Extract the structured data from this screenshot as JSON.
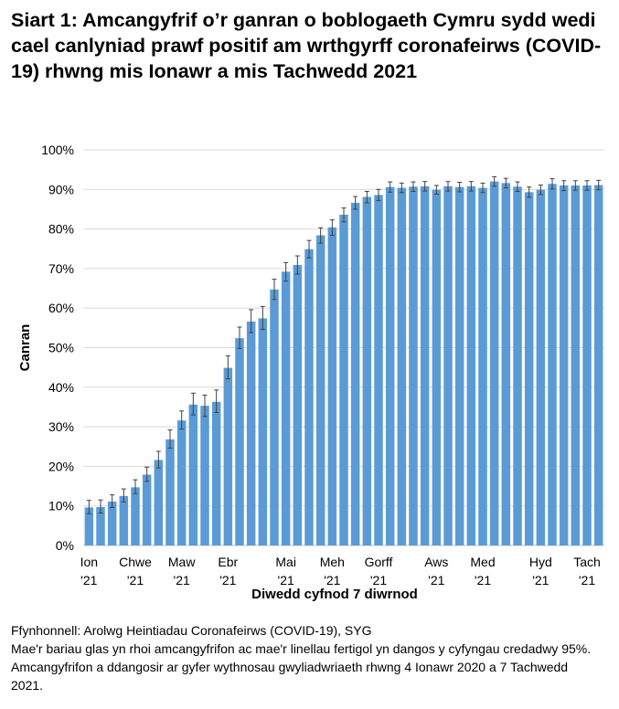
{
  "chart_data": {
    "type": "bar",
    "title": "Siart 1: Amcangyfrif o’r ganran o boblogaeth Cymru sydd wedi cael canlyniad prawf positif am wrthgyrff coronafeirws (COVID-19) rhwng mis Ionawr a mis Tachwedd 2021",
    "xlabel": "Diwedd cyfnod 7 diwrnod",
    "ylabel": "Canran",
    "ylim": [
      0,
      100
    ],
    "y_ticks": [
      "0%",
      "10%",
      "20%",
      "30%",
      "40%",
      "50%",
      "60%",
      "70%",
      "80%",
      "90%",
      "100%"
    ],
    "grid": true,
    "x_tick_labels": [
      {
        "index": 0,
        "month": "Ion",
        "year": "'21"
      },
      {
        "index": 4,
        "month": "Chwe",
        "year": "'21"
      },
      {
        "index": 8,
        "month": "Maw",
        "year": "'21"
      },
      {
        "index": 12,
        "month": "Ebr",
        "year": "'21"
      },
      {
        "index": 17,
        "month": "Mai",
        "year": "'21"
      },
      {
        "index": 21,
        "month": "Meh",
        "year": "'21"
      },
      {
        "index": 25,
        "month": "Gorff",
        "year": "'21"
      },
      {
        "index": 30,
        "month": "Aws",
        "year": "'21"
      },
      {
        "index": 34,
        "month": "Med",
        "year": "'21"
      },
      {
        "index": 39,
        "month": "Hyd",
        "year": "'21"
      },
      {
        "index": 43,
        "month": "Tach",
        "year": "'21"
      }
    ],
    "series": [
      {
        "name": "Amcangyfrif",
        "color": "#5B9BD5",
        "values": [
          9.6,
          9.7,
          11.1,
          12.5,
          14.7,
          17.9,
          21.6,
          26.8,
          31.6,
          35.6,
          35.3,
          36.3,
          44.9,
          52.4,
          56.6,
          57.4,
          64.7,
          69.2,
          70.9,
          74.9,
          78.4,
          80.4,
          83.6,
          86.6,
          88.1,
          88.6,
          90.6,
          90.4,
          90.7,
          90.8,
          89.9,
          90.8,
          90.6,
          90.8,
          90.4,
          92.0,
          91.6,
          90.7,
          89.3,
          89.9,
          91.4,
          91.0,
          91.0,
          91.0,
          91.1
        ],
        "ci_lower": [
          8.0,
          8.2,
          9.6,
          11.0,
          13.1,
          16.2,
          19.6,
          24.6,
          29.4,
          33.0,
          32.6,
          33.6,
          42.1,
          49.8,
          53.8,
          54.6,
          62.2,
          66.8,
          68.6,
          72.7,
          76.4,
          78.4,
          81.8,
          85.0,
          86.6,
          87.2,
          89.3,
          89.2,
          89.5,
          89.6,
          88.8,
          89.6,
          89.4,
          89.6,
          89.2,
          90.8,
          90.4,
          89.5,
          88.0,
          88.7,
          90.1,
          89.7,
          89.8,
          89.8,
          89.9
        ],
        "ci_upper": [
          11.4,
          11.5,
          12.8,
          14.3,
          16.6,
          19.8,
          23.8,
          29.2,
          34.0,
          38.5,
          38.0,
          39.3,
          47.9,
          55.2,
          59.6,
          60.4,
          67.3,
          71.5,
          73.2,
          77.1,
          80.3,
          82.3,
          85.3,
          88.2,
          89.5,
          90.0,
          91.9,
          91.6,
          91.9,
          92.0,
          91.0,
          92.0,
          91.8,
          92.0,
          91.6,
          93.2,
          92.8,
          91.9,
          90.6,
          91.1,
          92.7,
          92.2,
          92.2,
          92.2,
          92.3
        ]
      }
    ]
  },
  "footer": {
    "source": "Ffynhonnell: Arolwg Heintiadau Coronafeirws (COVID-19), SYG",
    "note": "Mae'r bariau glas yn rhoi amcangyfrifon ac mae'r linellau fertigol yn dangos y cyfyngau credadwy 95%. Amcangyfrifon a ddangosir ar gyfer wythnosau gwyliadwriaeth rhwng 4 Ionawr 2020 a 7 Tachwedd 2021."
  }
}
